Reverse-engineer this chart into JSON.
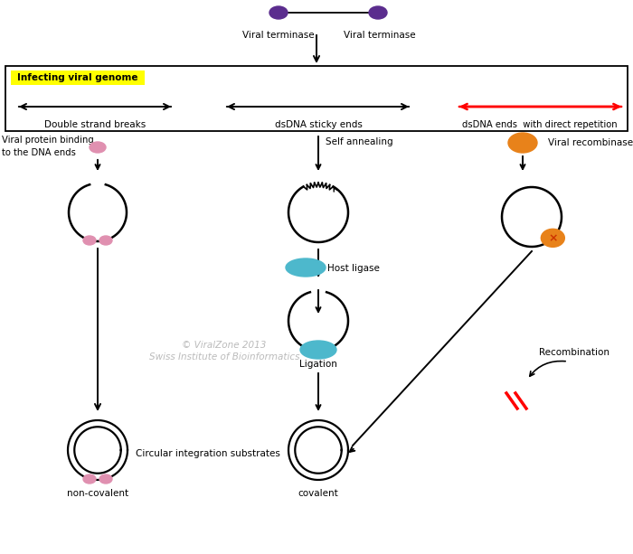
{
  "bg_color": "#ffffff",
  "yellow_label": "Infecting viral genome",
  "yellow_bg": "#ffff00",
  "label1": "Double strand breaks",
  "label2": "dsDNA sticky ends",
  "label3": "dsDNA ends  with direct repetition",
  "label_vp": "Viral protein binding\nto the DNA ends",
  "label_sa": "Self annealing",
  "label_vr": "Viral recombinase",
  "label_hl": "Host ligase",
  "label_lig": "Ligation",
  "label_rec": "Recombination",
  "label_cis": "Circular integration substrates",
  "label_nc": "non-covalent",
  "label_cov": "covalent",
  "watermark1": "© ViralZone 2013",
  "watermark2": "Swiss Institute of Bioinformatics",
  "purple": "#5b2d8e",
  "pink": "#e090b0",
  "orange": "#e8821a",
  "blue": "#4db8cc",
  "red": "#ff0000"
}
